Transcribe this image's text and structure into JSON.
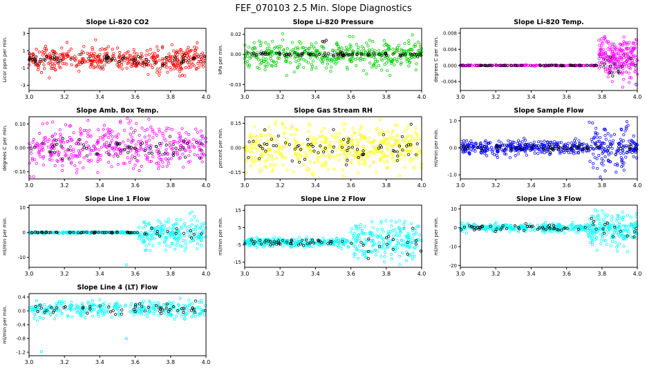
{
  "page_title": "FEF_070103  2.5 Min. Slope Diagnostics",
  "chart_data": [
    {
      "type": "scatter",
      "title": "Slope Li-820 CO2",
      "ylabel": "Licor ppm per min.",
      "xlim": [
        3.0,
        4.0
      ],
      "ylim": [
        -3.6,
        3.6
      ],
      "xticks": [
        [
          3.0,
          "3.0"
        ],
        [
          3.2,
          "3.2"
        ],
        [
          3.4,
          "3.4"
        ],
        [
          3.6,
          "3.6"
        ],
        [
          3.8,
          "3.8"
        ],
        [
          4.0,
          "4.0"
        ]
      ],
      "yticks": [
        [
          3,
          "3"
        ],
        [
          1,
          "1"
        ],
        [
          -1,
          "-1"
        ],
        [
          -3,
          "-3"
        ]
      ],
      "grid": false,
      "legend": "none",
      "series": [
        {
          "name": "co2-slope",
          "color": "#ff0000",
          "segments": [
            {
              "x0": 3.0,
              "x1": 4.0,
              "n": 430,
              "center": 0,
              "sd": 0.75,
              "clip": [
                -3.4,
                3.4
              ]
            }
          ]
        },
        {
          "name": "flagged-overlay",
          "color": "#000000",
          "segments": [
            {
              "x0": 3.0,
              "x1": 4.0,
              "n": 70,
              "center": 0,
              "sd": 0.3,
              "clip": [
                -1.6,
                1.6
              ]
            }
          ]
        }
      ],
      "outliers": []
    },
    {
      "type": "scatter",
      "title": "Slope Li-820 Pressure",
      "ylabel": "kPa per min.",
      "xlim": [
        3.0,
        4.0
      ],
      "ylim": [
        -0.036,
        0.026
      ],
      "xticks": [
        [
          3.0,
          "3.0"
        ],
        [
          3.2,
          "3.2"
        ],
        [
          3.4,
          "3.4"
        ],
        [
          3.6,
          "3.6"
        ],
        [
          3.8,
          "3.8"
        ],
        [
          4.0,
          "4.0"
        ]
      ],
      "yticks": [
        [
          0.02,
          "0.02"
        ],
        [
          0.0,
          "0.00"
        ],
        [
          -0.03,
          "-0.03"
        ]
      ],
      "grid": false,
      "legend": "none",
      "series": [
        {
          "name": "pressure-slope",
          "color": "#00cc00",
          "segments": [
            {
              "x0": 3.0,
              "x1": 4.0,
              "n": 440,
              "center": 0,
              "sd": 0.007,
              "clip": [
                -0.033,
                0.023
              ]
            }
          ]
        },
        {
          "name": "flagged-overlay",
          "color": "#000000",
          "segments": [
            {
              "x0": 3.0,
              "x1": 4.0,
              "n": 90,
              "center": 0,
              "sd": 0.0009,
              "clip": [
                -0.004,
                0.004
              ]
            }
          ]
        }
      ],
      "outliers": [
        {
          "x": 3.44,
          "y": 0.013,
          "color": "#000000"
        },
        {
          "x": 3.46,
          "y": 0.014,
          "color": "#000000"
        },
        {
          "x": 3.45,
          "y": 0.0125,
          "color": "#000000"
        }
      ]
    },
    {
      "type": "scatter",
      "title": "Slope Li-820 Temp.",
      "ylabel": "degrees C per min.",
      "xlim": [
        3.0,
        4.0
      ],
      "ylim": [
        -0.0062,
        0.0092
      ],
      "xticks": [
        [
          3.0,
          "3.0"
        ],
        [
          3.2,
          "3.2"
        ],
        [
          3.4,
          "3.4"
        ],
        [
          3.6,
          "3.6"
        ],
        [
          3.8,
          "3.8"
        ],
        [
          4.0,
          "4.0"
        ]
      ],
      "yticks": [
        [
          0.008,
          "0.008"
        ],
        [
          0.004,
          "0.004"
        ],
        [
          0.0,
          "0.000"
        ],
        [
          -0.004,
          "-0.004"
        ]
      ],
      "grid": false,
      "legend": "none",
      "series": [
        {
          "name": "temp-slope",
          "color": "#ff00ff",
          "segments": [
            {
              "x0": 3.0,
              "x1": 3.78,
              "n": 170,
              "center": 0,
              "sd": 6e-05,
              "clip": [
                -0.0004,
                0.0004
              ]
            },
            {
              "x0": 3.78,
              "x1": 4.0,
              "n": 230,
              "center": 0.0018,
              "sd": 0.0028,
              "clip": [
                -0.0058,
                0.0088
              ]
            }
          ]
        },
        {
          "name": "flagged-overlay",
          "color": "#000000",
          "segments": [
            {
              "x0": 3.0,
              "x1": 3.78,
              "n": 60,
              "center": 0,
              "sd": 4e-05,
              "clip": [
                -0.0003,
                0.0003
              ]
            },
            {
              "x0": 3.78,
              "x1": 4.0,
              "n": 16,
              "center": 0.0005,
              "sd": 0.002,
              "clip": [
                -0.005,
                0.008
              ]
            }
          ]
        }
      ],
      "outliers": []
    },
    {
      "type": "scatter",
      "title": "Slope Amb. Box Temp.",
      "ylabel": "degrees C per min.",
      "xlim": [
        3.0,
        4.0
      ],
      "ylim": [
        -0.13,
        0.13
      ],
      "xticks": [
        [
          3.0,
          "3.0"
        ],
        [
          3.2,
          "3.2"
        ],
        [
          3.4,
          "3.4"
        ],
        [
          3.6,
          "3.6"
        ],
        [
          3.8,
          "3.8"
        ],
        [
          4.0,
          "4.0"
        ]
      ],
      "yticks": [
        [
          0.1,
          "0.10"
        ],
        [
          0.0,
          "0.00"
        ],
        [
          -0.1,
          "-0.10"
        ]
      ],
      "grid": false,
      "legend": "none",
      "series": [
        {
          "name": "box-temp-slope",
          "color": "#ff00ff",
          "segments": [
            {
              "x0": 3.0,
              "x1": 4.0,
              "n": 430,
              "center": 0,
              "sd": 0.045,
              "clip": [
                -0.125,
                0.125
              ]
            }
          ]
        },
        {
          "name": "flagged-overlay",
          "color": "#000000",
          "segments": [
            {
              "x0": 3.0,
              "x1": 4.0,
              "n": 65,
              "center": 0,
              "sd": 0.02,
              "clip": [
                -0.08,
                0.08
              ]
            }
          ]
        }
      ],
      "outliers": []
    },
    {
      "type": "scatter",
      "title": "Slope Gas Stream RH",
      "ylabel": "percent per min.",
      "xlim": [
        3.0,
        4.0
      ],
      "ylim": [
        -0.19,
        0.19
      ],
      "xticks": [
        [
          3.0,
          "3.0"
        ],
        [
          3.2,
          "3.2"
        ],
        [
          3.4,
          "3.4"
        ],
        [
          3.6,
          "3.6"
        ],
        [
          3.8,
          "3.8"
        ],
        [
          4.0,
          "4.0"
        ]
      ],
      "yticks": [
        [
          0.15,
          "0.15"
        ],
        [
          0.0,
          "0.00"
        ],
        [
          -0.15,
          "-0.15"
        ]
      ],
      "grid": false,
      "legend": "none",
      "series": [
        {
          "name": "rh-slope",
          "color": "#ffff00",
          "segments": [
            {
              "x0": 3.0,
              "x1": 4.0,
              "n": 470,
              "center": 0,
              "sd": 0.075,
              "clip": [
                -0.18,
                0.18
              ]
            }
          ]
        },
        {
          "name": "flagged-overlay",
          "color": "#000000",
          "segments": [
            {
              "x0": 3.0,
              "x1": 4.0,
              "n": 70,
              "center": 0,
              "sd": 0.045,
              "clip": [
                -0.15,
                0.15
              ]
            }
          ]
        }
      ],
      "outliers": []
    },
    {
      "type": "scatter",
      "title": "Slope Sample Flow",
      "ylabel": "ml/min per min.",
      "xlim": [
        3.0,
        4.0
      ],
      "ylim": [
        -1.15,
        1.15
      ],
      "xticks": [
        [
          3.0,
          "3.0"
        ],
        [
          3.2,
          "3.2"
        ],
        [
          3.4,
          "3.4"
        ],
        [
          3.6,
          "3.6"
        ],
        [
          3.8,
          "3.8"
        ],
        [
          4.0,
          "4.0"
        ]
      ],
      "yticks": [
        [
          1.0,
          "1.0"
        ],
        [
          0.0,
          "0.0"
        ],
        [
          -1.0,
          "-1.0"
        ]
      ],
      "grid": false,
      "legend": "none",
      "series": [
        {
          "name": "sample-flow-slope",
          "color": "#0000ff",
          "segments": [
            {
              "x0": 3.0,
              "x1": 3.72,
              "n": 340,
              "center": 0,
              "sd": 0.13,
              "clip": [
                -0.65,
                0.65
              ]
            },
            {
              "x0": 3.72,
              "x1": 3.95,
              "n": 130,
              "center": 0,
              "sd": 0.45,
              "clip": [
                -1.1,
                1.1
              ]
            },
            {
              "x0": 3.95,
              "x1": 4.0,
              "n": 35,
              "center": 0,
              "sd": 0.18,
              "clip": [
                -0.6,
                0.6
              ]
            }
          ]
        },
        {
          "name": "flagged-overlay",
          "color": "#000000",
          "segments": [
            {
              "x0": 3.0,
              "x1": 4.0,
              "n": 65,
              "center": 0,
              "sd": 0.06,
              "clip": [
                -0.3,
                0.3
              ]
            }
          ]
        }
      ],
      "outliers": []
    },
    {
      "type": "scatter",
      "title": "Slope Line 1 Flow",
      "ylabel": "ml/min per min.",
      "xlim": [
        3.0,
        4.0
      ],
      "ylim": [
        -14,
        11
      ],
      "xticks": [
        [
          3.0,
          "3.0"
        ],
        [
          3.2,
          "3.2"
        ],
        [
          3.4,
          "3.4"
        ],
        [
          3.6,
          "3.6"
        ],
        [
          3.8,
          "3.8"
        ],
        [
          4.0,
          "4.0"
        ]
      ],
      "yticks": [
        [
          10,
          "10"
        ],
        [
          0,
          "0"
        ],
        [
          -10,
          "-10"
        ]
      ],
      "grid": false,
      "legend": "none",
      "series": [
        {
          "name": "line1-flow-slope",
          "color": "#00ffff",
          "segments": [
            {
              "x0": 3.0,
              "x1": 3.62,
              "n": 220,
              "center": 0,
              "sd": 0.18,
              "clip": [
                -1,
                1
              ]
            },
            {
              "x0": 3.62,
              "x1": 4.0,
              "n": 200,
              "center": 0,
              "sd": 3.0,
              "clip": [
                -8.5,
                8.5
              ]
            }
          ]
        },
        {
          "name": "flagged-overlay",
          "color": "#000000",
          "segments": [
            {
              "x0": 3.0,
              "x1": 3.62,
              "n": 48,
              "center": 0,
              "sd": 0.1,
              "clip": [
                -0.5,
                0.5
              ]
            },
            {
              "x0": 3.62,
              "x1": 4.0,
              "n": 14,
              "center": 0,
              "sd": 1.0,
              "clip": [
                -3,
                3
              ]
            }
          ]
        }
      ],
      "outliers": [
        {
          "x": 3.55,
          "y": -13,
          "color": "#00ffff"
        }
      ]
    },
    {
      "type": "scatter",
      "title": "Slope Line 2 Flow",
      "ylabel": "ml/min per min.",
      "xlim": [
        3.0,
        4.0
      ],
      "ylim": [
        -18,
        18
      ],
      "xticks": [
        [
          3.0,
          "3.0"
        ],
        [
          3.2,
          "3.2"
        ],
        [
          3.4,
          "3.4"
        ],
        [
          3.6,
          "3.6"
        ],
        [
          3.8,
          "3.8"
        ],
        [
          4.0,
          "4.0"
        ]
      ],
      "yticks": [
        [
          15,
          "15"
        ],
        [
          5,
          "5"
        ],
        [
          -5,
          "-5"
        ],
        [
          -15,
          "-15"
        ]
      ],
      "grid": false,
      "legend": "none",
      "series": [
        {
          "name": "line2-flow-slope",
          "color": "#00ffff",
          "segments": [
            {
              "x0": 3.0,
              "x1": 3.6,
              "n": 240,
              "center": -3.5,
              "sd": 1.3,
              "clip": [
                -8,
                1
              ]
            },
            {
              "x0": 3.6,
              "x1": 4.0,
              "n": 210,
              "center": -3,
              "sd": 5.5,
              "clip": [
                -17,
                16
              ]
            }
          ]
        },
        {
          "name": "flagged-overlay",
          "color": "#000000",
          "segments": [
            {
              "x0": 3.0,
              "x1": 3.6,
              "n": 45,
              "center": -3.5,
              "sd": 1.0,
              "clip": [
                -7,
                0
              ]
            },
            {
              "x0": 3.6,
              "x1": 4.0,
              "n": 18,
              "center": -4,
              "sd": 4.0,
              "clip": [
                -16,
                8
              ]
            }
          ]
        }
      ],
      "outliers": []
    },
    {
      "type": "scatter",
      "title": "Slope Line 3 Flow",
      "ylabel": "ml/min per min.",
      "xlim": [
        3.0,
        4.0
      ],
      "ylim": [
        -21,
        12
      ],
      "xticks": [
        [
          3.0,
          "3.0"
        ],
        [
          3.2,
          "3.2"
        ],
        [
          3.4,
          "3.4"
        ],
        [
          3.6,
          "3.6"
        ],
        [
          3.8,
          "3.8"
        ],
        [
          4.0,
          "4.0"
        ]
      ],
      "yticks": [
        [
          10,
          "10"
        ],
        [
          0,
          "0"
        ],
        [
          -10,
          "-10"
        ],
        [
          -20,
          "-20"
        ]
      ],
      "grid": false,
      "legend": "none",
      "series": [
        {
          "name": "line3-flow-slope",
          "color": "#00ffff",
          "segments": [
            {
              "x0": 3.0,
              "x1": 3.72,
              "n": 260,
              "center": 0,
              "sd": 1.1,
              "clip": [
                -4,
                4
              ]
            },
            {
              "x0": 3.72,
              "x1": 4.0,
              "n": 190,
              "center": -1,
              "sd": 4.5,
              "clip": [
                -19,
                10
              ]
            }
          ]
        },
        {
          "name": "flagged-overlay",
          "color": "#000000",
          "segments": [
            {
              "x0": 3.0,
              "x1": 3.72,
              "n": 50,
              "center": 0,
              "sd": 0.8,
              "clip": [
                -3,
                3
              ]
            },
            {
              "x0": 3.72,
              "x1": 4.0,
              "n": 15,
              "center": 0,
              "sd": 2.0,
              "clip": [
                -8,
                6
              ]
            }
          ]
        }
      ],
      "outliers": []
    },
    {
      "type": "scatter",
      "title": "Slope Line 4 (LT) Flow",
      "ylabel": "ml/min per min.",
      "xlim": [
        3.0,
        4.0
      ],
      "ylim": [
        -1.3,
        0.5
      ],
      "xticks": [
        [
          3.0,
          "3.0"
        ],
        [
          3.2,
          "3.2"
        ],
        [
          3.4,
          "3.4"
        ],
        [
          3.6,
          "3.6"
        ],
        [
          3.8,
          "3.8"
        ],
        [
          4.0,
          "4.0"
        ]
      ],
      "yticks": [
        [
          0.4,
          "0.4"
        ],
        [
          0.0,
          "0.0"
        ],
        [
          -0.4,
          "-0.4"
        ],
        [
          -0.8,
          "-0.8"
        ],
        [
          -1.2,
          "-1.2"
        ]
      ],
      "grid": false,
      "legend": "none",
      "series": [
        {
          "name": "line4-flow-slope",
          "color": "#00ffff",
          "segments": [
            {
              "x0": 3.0,
              "x1": 4.0,
              "n": 330,
              "center": 0.05,
              "sd": 0.12,
              "clip": [
                -0.45,
                0.45
              ]
            }
          ]
        },
        {
          "name": "flagged-overlay",
          "color": "#000000",
          "segments": [
            {
              "x0": 3.0,
              "x1": 4.0,
              "n": 55,
              "center": 0.05,
              "sd": 0.08,
              "clip": [
                -0.3,
                0.35
              ]
            }
          ]
        }
      ],
      "outliers": [
        {
          "x": 3.07,
          "y": -1.18,
          "color": "#00ffff"
        },
        {
          "x": 3.55,
          "y": -0.8,
          "color": "#00ffff"
        }
      ]
    }
  ]
}
